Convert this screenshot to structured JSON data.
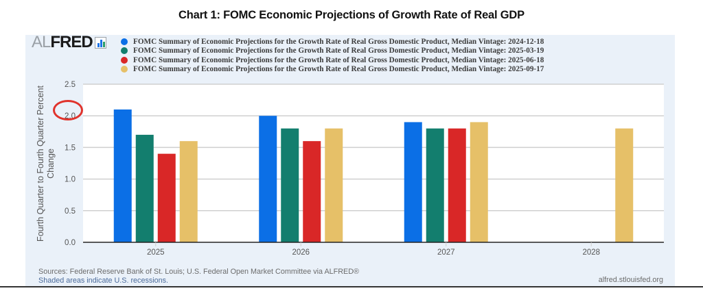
{
  "page": {
    "title": "Chart 1: FOMC Economic Projections of Growth Rate of Real GDP"
  },
  "logo": {
    "part1": "AL",
    "part2": "FRED",
    "icon": "bar-chart-icon"
  },
  "footer": {
    "sources": "Sources: Federal Reserve Bank of St. Louis; U.S. Federal Open Market Committee via ALFRED®",
    "note": "Shaded areas indicate U.S. recessions.",
    "site": "alfred.stlouisfed.org"
  },
  "annotation": {
    "type": "red-circle",
    "target_tick": "2.0",
    "color": "#e0332c"
  },
  "chart_data": {
    "type": "bar",
    "title": "Chart 1: FOMC Economic Projections of Growth Rate of Real GDP",
    "xlabel": "",
    "ylabel": "Fourth Quarter to Fourth Quarter Percent Change",
    "ylabel_lines": [
      "Fourth Quarter to Fourth Quarter Percent",
      "Change"
    ],
    "categories": [
      "2025",
      "2026",
      "2027",
      "2028"
    ],
    "ylim": [
      0,
      2.5
    ],
    "yticks": [
      0.0,
      0.5,
      1.0,
      1.5,
      2.0,
      2.5
    ],
    "ytick_labels": [
      "0.0",
      "0.5",
      "1.0",
      "1.5",
      "2.0",
      "2.5"
    ],
    "grid": true,
    "legend_position": "top",
    "series": [
      {
        "name": "FOMC Summary of Economic Projections for the Growth Rate of Real Gross Domestic Product, Median Vintage: 2024-12-18",
        "color": "#0b6fe6",
        "values": [
          2.1,
          2.0,
          1.9,
          null
        ]
      },
      {
        "name": "FOMC Summary of Economic Projections for the Growth Rate of Real Gross Domestic Product, Median Vintage: 2025-03-19",
        "color": "#137e6e",
        "values": [
          1.7,
          1.8,
          1.8,
          null
        ]
      },
      {
        "name": "FOMC Summary of Economic Projections for the Growth Rate of Real Gross Domestic Product, Median Vintage: 2025-06-18",
        "color": "#d92727",
        "values": [
          1.4,
          1.6,
          1.8,
          null
        ]
      },
      {
        "name": "FOMC Summary of Economic Projections for the Growth Rate of Real Gross Domestic Product, Median Vintage: 2025-09-17",
        "color": "#e6c068",
        "values": [
          1.6,
          1.8,
          1.9,
          1.8
        ]
      }
    ]
  }
}
